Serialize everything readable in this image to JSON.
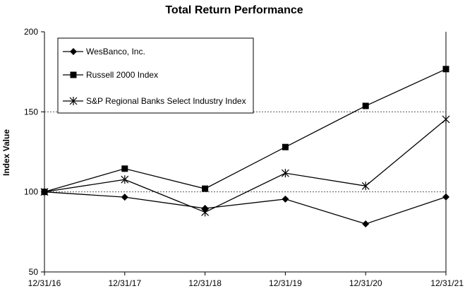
{
  "chart_data": {
    "type": "line",
    "title": "Total Return Performance",
    "xlabel": "",
    "ylabel": "Index Value",
    "categories": [
      "12/31/16",
      "12/31/17",
      "12/31/18",
      "12/31/19",
      "12/31/20",
      "12/31/21"
    ],
    "ylim": [
      50,
      200
    ],
    "yticks": [
      50,
      100,
      150,
      200
    ],
    "gridlines_at": [
      100,
      150
    ],
    "legend_position": "top-left inside plot",
    "series": [
      {
        "name": "WesBanco, Inc.",
        "marker": "diamond",
        "values": [
          100,
          96.7,
          89.7,
          95.5,
          80,
          96.8
        ]
      },
      {
        "name": "Russell 2000 Index",
        "marker": "square",
        "values": [
          100,
          114.5,
          102,
          128,
          153.7,
          176.7
        ]
      },
      {
        "name": "S&P Regional Banks Select Industry Index",
        "marker": "star",
        "values": [
          100,
          107.7,
          87.3,
          111.7,
          103.7,
          145.3
        ]
      }
    ]
  }
}
